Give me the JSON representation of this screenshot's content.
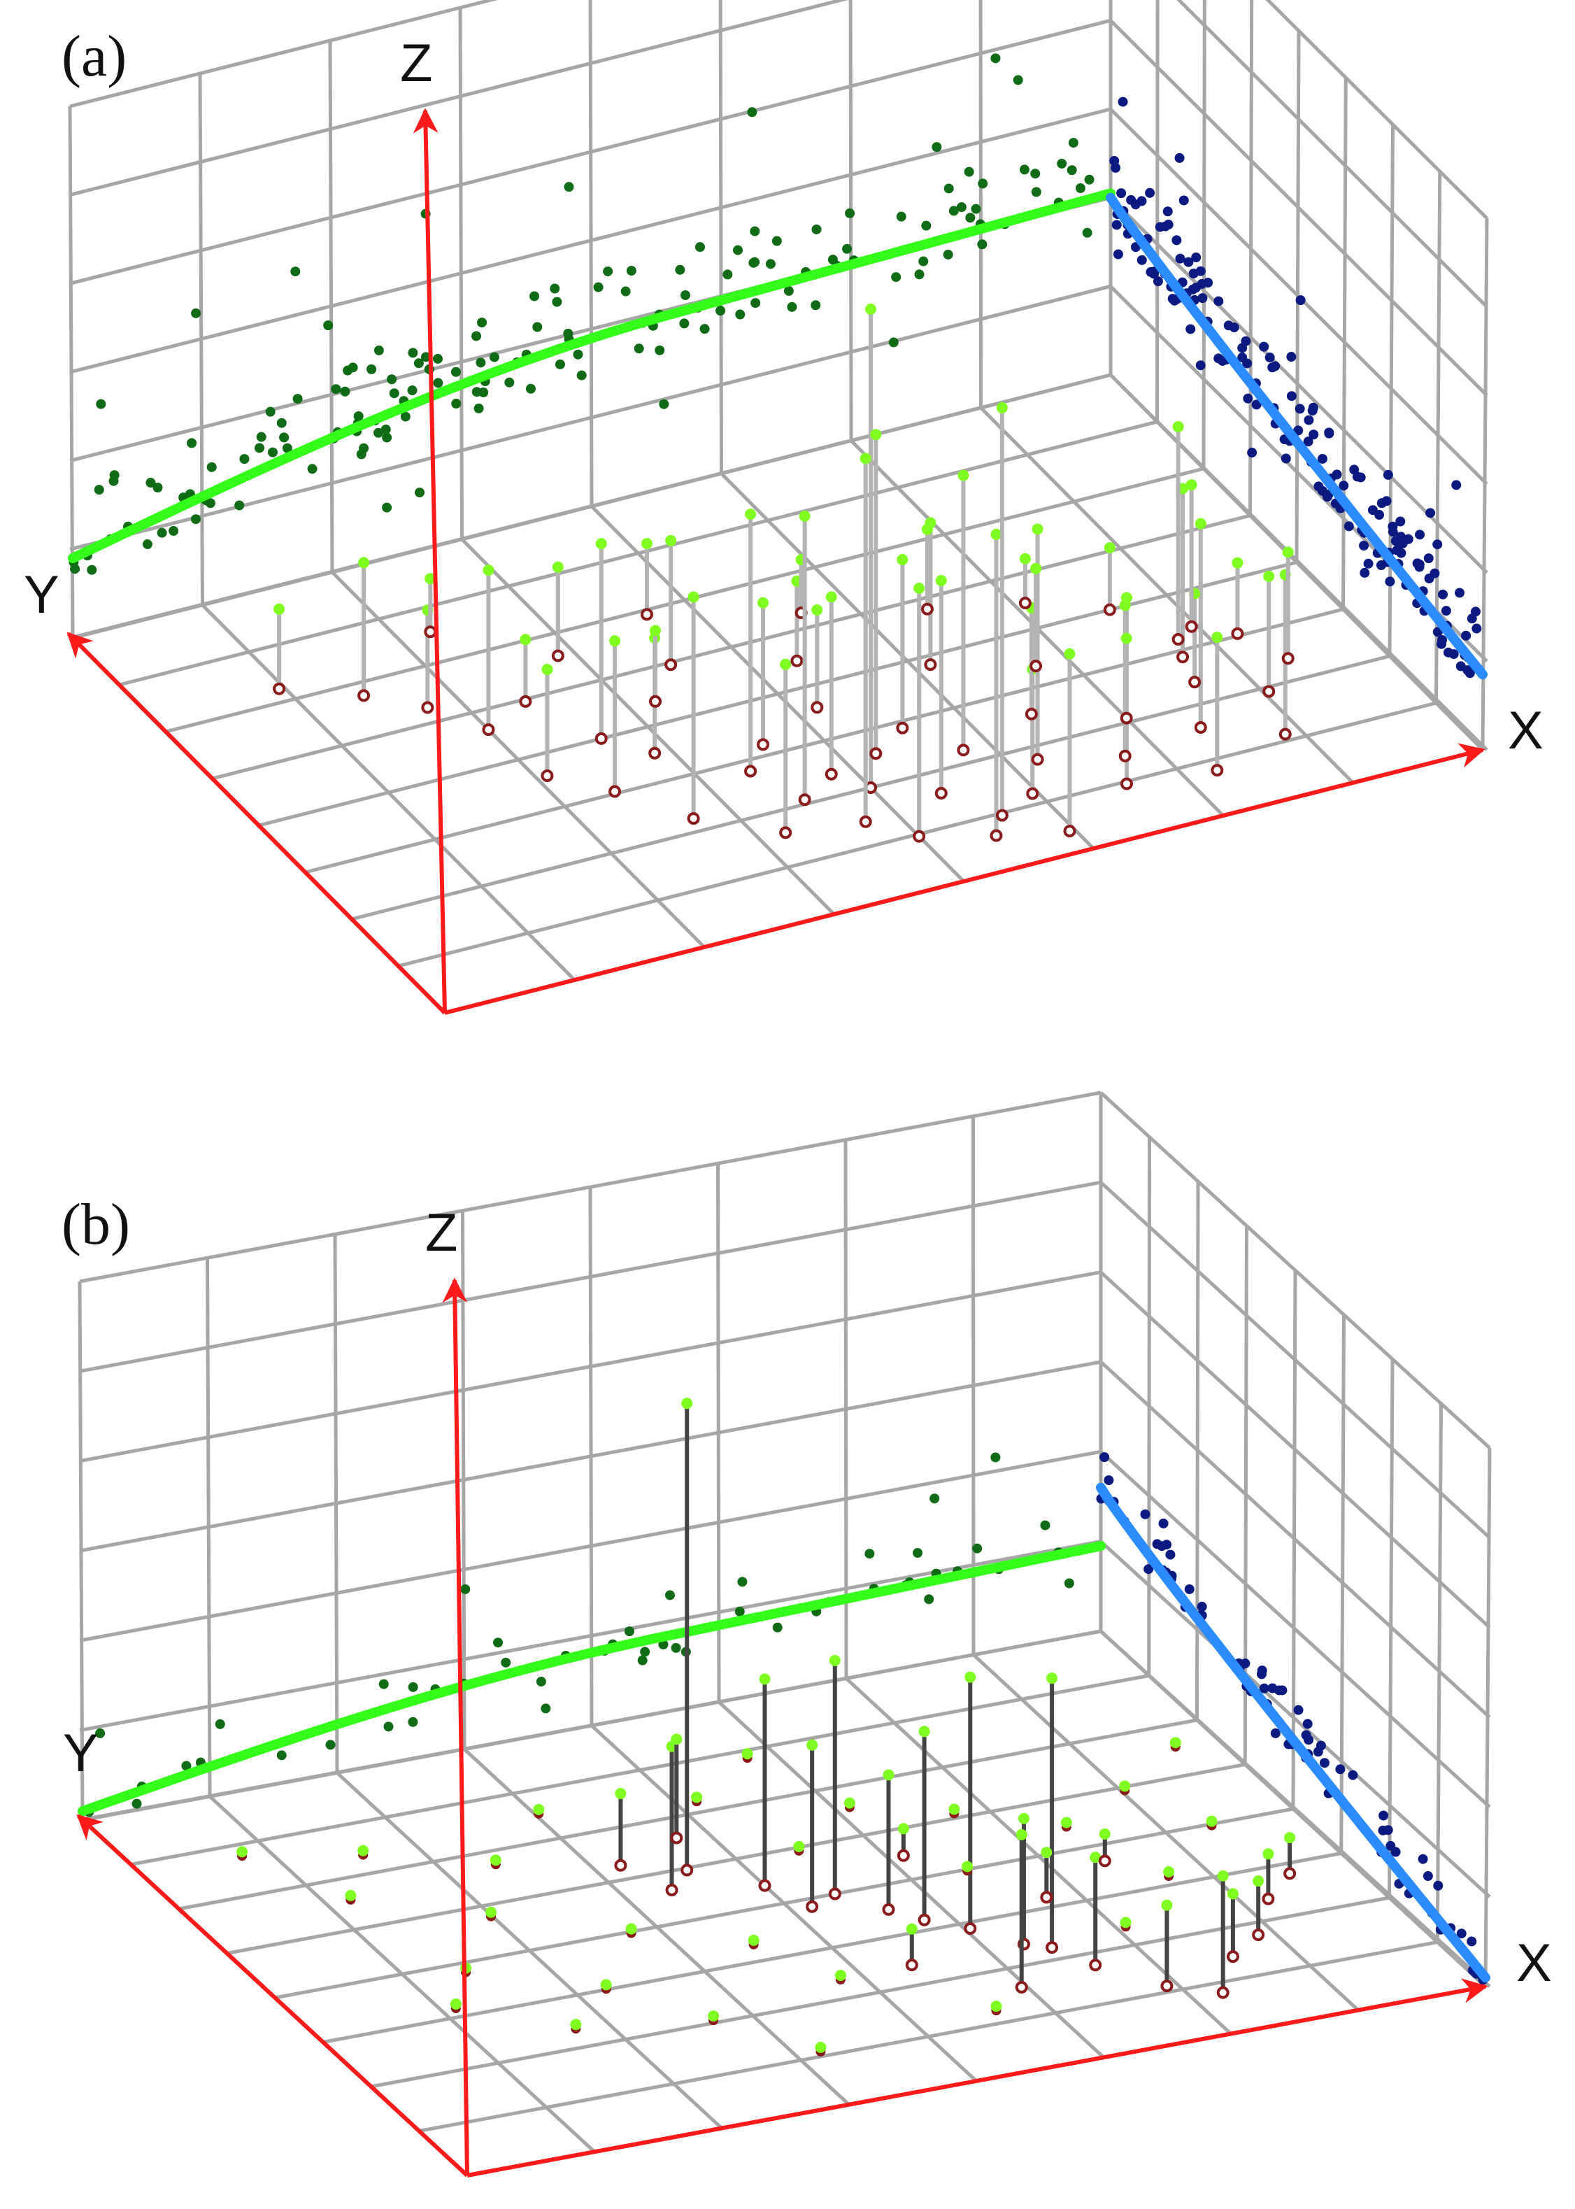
{
  "colors": {
    "grid": "#a6a6a6",
    "axis": "#ff1a1a",
    "projection_xz": "#0a1a80",
    "projection_yz": "#0f6b14",
    "trend_xz": "#2b8cff",
    "trend_yz": "#33ff1a",
    "point_top": "#7fff1f",
    "point_base": "#8b1a1a",
    "stem_a": "#b3b3b3",
    "stem_b": "#444444"
  },
  "chart_data": [
    {
      "panel_label": "(a)",
      "type": "scatter",
      "axis_labels": {
        "x": "X",
        "y": "Y",
        "z": "Z"
      },
      "grid": true,
      "grid_divisions": {
        "x": 8,
        "y": 8,
        "z": 6
      },
      "series": {
        "stems": [
          {
            "x": 0.12,
            "y": 0.78,
            "z": 0.9
          },
          {
            "x": 0.18,
            "y": 0.72,
            "z": 1.5
          },
          {
            "x": 0.22,
            "y": 0.66,
            "z": 1.1
          },
          {
            "x": 0.25,
            "y": 0.58,
            "z": 1.8
          },
          {
            "x": 0.3,
            "y": 0.62,
            "z": 0.7
          },
          {
            "x": 0.33,
            "y": 0.5,
            "z": 2.2
          },
          {
            "x": 0.36,
            "y": 0.44,
            "z": 1.3
          },
          {
            "x": 0.4,
            "y": 0.55,
            "z": 0.8
          },
          {
            "x": 0.42,
            "y": 0.35,
            "z": 2.9
          },
          {
            "x": 0.45,
            "y": 0.4,
            "z": 1.6
          },
          {
            "x": 0.48,
            "y": 0.3,
            "z": 2.0
          },
          {
            "x": 0.5,
            "y": 0.25,
            "z": 5.4
          },
          {
            "x": 0.52,
            "y": 0.45,
            "z": 1.1
          },
          {
            "x": 0.55,
            "y": 0.2,
            "z": 2.4
          },
          {
            "x": 0.57,
            "y": 0.36,
            "z": 1.9
          },
          {
            "x": 0.6,
            "y": 0.28,
            "z": 3.1
          },
          {
            "x": 0.62,
            "y": 0.15,
            "z": 1.4
          },
          {
            "x": 0.65,
            "y": 0.22,
            "z": 2.6
          },
          {
            "x": 0.68,
            "y": 0.32,
            "z": 1.2
          },
          {
            "x": 0.7,
            "y": 0.12,
            "z": 2.1
          },
          {
            "x": 0.72,
            "y": 0.18,
            "z": 1.7
          },
          {
            "x": 0.75,
            "y": 0.26,
            "z": 0.9
          },
          {
            "x": 0.78,
            "y": 0.1,
            "z": 1.5
          },
          {
            "x": 0.8,
            "y": 0.2,
            "z": 2.3
          },
          {
            "x": 0.83,
            "y": 0.3,
            "z": 1.0
          },
          {
            "x": 0.86,
            "y": 0.14,
            "z": 1.8
          },
          {
            "x": 0.88,
            "y": 0.24,
            "z": 1.3
          },
          {
            "x": 0.9,
            "y": 0.38,
            "z": 0.8
          },
          {
            "x": 0.36,
            "y": 0.7,
            "z": 1.0
          },
          {
            "x": 0.44,
            "y": 0.62,
            "z": 1.4
          },
          {
            "x": 0.54,
            "y": 0.56,
            "z": 0.9
          },
          {
            "x": 0.64,
            "y": 0.48,
            "z": 1.6
          },
          {
            "x": 0.72,
            "y": 0.42,
            "z": 1.1
          },
          {
            "x": 0.82,
            "y": 0.5,
            "z": 0.7
          },
          {
            "x": 0.92,
            "y": 0.3,
            "z": 1.2
          },
          {
            "x": 0.28,
            "y": 0.82,
            "z": 0.6
          },
          {
            "x": 0.46,
            "y": 0.74,
            "z": 0.8
          },
          {
            "x": 0.58,
            "y": 0.66,
            "z": 0.6
          },
          {
            "x": 0.68,
            "y": 0.6,
            "z": 0.9
          },
          {
            "x": 0.76,
            "y": 0.56,
            "z": 0.5
          },
          {
            "x": 0.84,
            "y": 0.36,
            "z": 1.9
          },
          {
            "x": 0.85,
            "y": 0.4,
            "z": 2.4
          },
          {
            "x": 0.87,
            "y": 0.42,
            "z": 1.6
          },
          {
            "x": 0.5,
            "y": 0.12,
            "z": 2.8
          },
          {
            "x": 0.56,
            "y": 0.08,
            "z": 3.4
          },
          {
            "x": 0.62,
            "y": 0.05,
            "z": 2.0
          },
          {
            "x": 0.4,
            "y": 0.2,
            "z": 1.9
          },
          {
            "x": 0.34,
            "y": 0.28,
            "z": 2.5
          },
          {
            "x": 0.3,
            "y": 0.38,
            "z": 1.7
          },
          {
            "x": 0.26,
            "y": 0.45,
            "z": 1.2
          },
          {
            "x": 0.47,
            "y": 0.18,
            "z": 4.1
          },
          {
            "x": 0.53,
            "y": 0.32,
            "z": 3.6
          },
          {
            "x": 0.58,
            "y": 0.12,
            "z": 4.6
          },
          {
            "x": 0.44,
            "y": 0.26,
            "z": 3.2
          }
        ],
        "projection_xz_count": 160,
        "projection_yz_count": 160,
        "trend_xz": {
          "z_start": 2.0,
          "z_end": 0.85
        },
        "trend_yz": {
          "z_start": 0.9,
          "z_mid": 1.95,
          "z_end": 2.05
        }
      }
    },
    {
      "panel_label": "(b)",
      "type": "scatter",
      "axis_labels": {
        "x": "X",
        "y": "Y",
        "z": "Z"
      },
      "grid": true,
      "grid_divisions": {
        "x": 8,
        "y": 8,
        "z": 6
      },
      "series": {
        "stems": [
          {
            "x": 0.45,
            "y": 0.62,
            "z": 5.2
          },
          {
            "x": 0.5,
            "y": 0.55,
            "z": 2.3
          },
          {
            "x": 0.52,
            "y": 0.48,
            "z": 1.8
          },
          {
            "x": 0.55,
            "y": 0.5,
            "z": 2.6
          },
          {
            "x": 0.58,
            "y": 0.44,
            "z": 1.5
          },
          {
            "x": 0.6,
            "y": 0.4,
            "z": 2.1
          },
          {
            "x": 0.63,
            "y": 0.36,
            "z": 2.8
          },
          {
            "x": 0.66,
            "y": 0.3,
            "z": 1.4
          },
          {
            "x": 0.68,
            "y": 0.28,
            "z": 3.0
          },
          {
            "x": 0.7,
            "y": 0.22,
            "z": 1.2
          },
          {
            "x": 0.42,
            "y": 0.58,
            "z": 1.6
          },
          {
            "x": 0.47,
            "y": 0.7,
            "z": 1.1
          },
          {
            "x": 0.4,
            "y": 0.66,
            "z": 0.8
          },
          {
            "x": 0.62,
            "y": 0.2,
            "z": 1.7
          },
          {
            "x": 0.74,
            "y": 0.14,
            "z": 0.9
          },
          {
            "x": 0.78,
            "y": 0.1,
            "z": 1.3
          },
          {
            "x": 0.82,
            "y": 0.18,
            "z": 0.7
          },
          {
            "x": 0.86,
            "y": 0.22,
            "z": 0.6
          },
          {
            "x": 0.9,
            "y": 0.3,
            "z": 0.5
          },
          {
            "x": 0.94,
            "y": 0.35,
            "z": 0.4
          },
          {
            "x": 0.55,
            "y": 0.3,
            "z": 0.4
          },
          {
            "x": 0.72,
            "y": 0.4,
            "z": 0.5
          },
          {
            "x": 0.8,
            "y": 0.46,
            "z": 0.3
          },
          {
            "x": 0.64,
            "y": 0.56,
            "z": 0.3
          }
        ],
        "flat_points": [
          {
            "x": 0.1,
            "y": 0.85
          },
          {
            "x": 0.15,
            "y": 0.7
          },
          {
            "x": 0.2,
            "y": 0.8
          },
          {
            "x": 0.25,
            "y": 0.6
          },
          {
            "x": 0.3,
            "y": 0.72
          },
          {
            "x": 0.35,
            "y": 0.5
          },
          {
            "x": 0.38,
            "y": 0.82
          },
          {
            "x": 0.44,
            "y": 0.42
          },
          {
            "x": 0.48,
            "y": 0.3
          },
          {
            "x": 0.52,
            "y": 0.78
          },
          {
            "x": 0.56,
            "y": 0.62
          },
          {
            "x": 0.6,
            "y": 0.86
          },
          {
            "x": 0.64,
            "y": 0.7
          },
          {
            "x": 0.68,
            "y": 0.5
          },
          {
            "x": 0.72,
            "y": 0.64
          },
          {
            "x": 0.76,
            "y": 0.3
          },
          {
            "x": 0.8,
            "y": 0.56
          },
          {
            "x": 0.84,
            "y": 0.4
          },
          {
            "x": 0.88,
            "y": 0.62
          },
          {
            "x": 0.92,
            "y": 0.5
          },
          {
            "x": 0.18,
            "y": 0.48
          },
          {
            "x": 0.28,
            "y": 0.38
          },
          {
            "x": 0.34,
            "y": 0.26
          },
          {
            "x": 0.4,
            "y": 0.14
          },
          {
            "x": 0.58,
            "y": 0.16
          },
          {
            "x": 0.96,
            "y": 0.7
          },
          {
            "x": 0.22,
            "y": 0.3
          },
          {
            "x": 0.14,
            "y": 0.4
          }
        ],
        "projection_xz_count": 70,
        "projection_yz_count": 50,
        "trend_xz": {
          "z_start": 1.6,
          "z_end": 0.1
        },
        "trend_yz": {
          "z_start": 0.1,
          "z_mid": 0.85,
          "z_end": 0.95
        }
      }
    }
  ]
}
